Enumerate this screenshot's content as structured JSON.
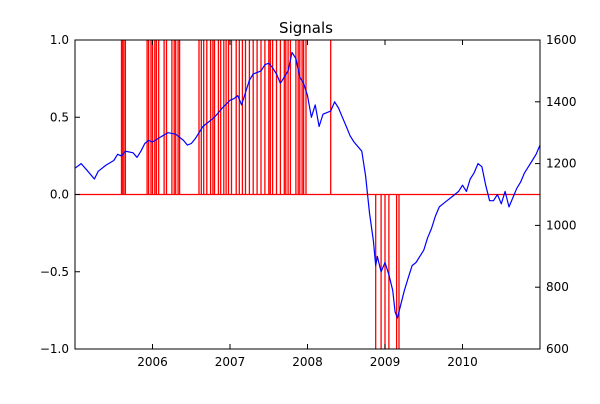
{
  "chart_data": {
    "type": "line",
    "title": "Signals",
    "xlabel": "",
    "ylabel": "",
    "ylabel_right": "",
    "grid": false,
    "legend": "none",
    "x_range": [
      2005.0,
      2011.0
    ],
    "x_ticks": [
      {
        "value": 2006,
        "label": "2006"
      },
      {
        "value": 2007,
        "label": "2007"
      },
      {
        "value": 2008,
        "label": "2008"
      },
      {
        "value": 2009,
        "label": "2009"
      },
      {
        "value": 2010,
        "label": "2010"
      }
    ],
    "y_left": {
      "range": [
        -1.0,
        1.0
      ],
      "ticks": [
        {
          "value": 1.0,
          "label": "1.0"
        },
        {
          "value": 0.5,
          "label": "0.5"
        },
        {
          "value": 0.0,
          "label": "0.0"
        },
        {
          "value": -0.5,
          "label": "−0.5"
        },
        {
          "value": -1.0,
          "label": "−1.0"
        }
      ]
    },
    "y_right": {
      "range": [
        600,
        1600
      ],
      "ticks": [
        {
          "value": 1600,
          "label": "1600"
        },
        {
          "value": 1400,
          "label": "1400"
        },
        {
          "value": 1200,
          "label": "1200"
        },
        {
          "value": 1000,
          "label": "1000"
        },
        {
          "value": 800,
          "label": "800"
        },
        {
          "value": 600,
          "label": "600"
        }
      ]
    },
    "series": [
      {
        "axis": "right",
        "color": "#0000ff",
        "x": [
          2005.0,
          2005.08,
          2005.15,
          2005.25,
          2005.3,
          2005.4,
          2005.5,
          2005.55,
          2005.6,
          2005.65,
          2005.75,
          2005.8,
          2005.85,
          2005.9,
          2005.95,
          2006.0,
          2006.1,
          2006.2,
          2006.3,
          2006.35,
          2006.4,
          2006.45,
          2006.5,
          2006.55,
          2006.6,
          2006.65,
          2006.7,
          2006.8,
          2006.9,
          2007.0,
          2007.05,
          2007.1,
          2007.15,
          2007.2,
          2007.25,
          2007.3,
          2007.4,
          2007.45,
          2007.5,
          2007.55,
          2007.6,
          2007.65,
          2007.7,
          2007.75,
          2007.8,
          2007.85,
          2007.9,
          2007.95,
          2008.0,
          2008.05,
          2008.1,
          2008.15,
          2008.2,
          2008.3,
          2008.35,
          2008.4,
          2008.45,
          2008.5,
          2008.55,
          2008.6,
          2008.7,
          2008.75,
          2008.8,
          2008.85,
          2008.88,
          2008.9,
          2008.95,
          2009.0,
          2009.05,
          2009.1,
          2009.13,
          2009.16,
          2009.2,
          2009.25,
          2009.3,
          2009.35,
          2009.4,
          2009.45,
          2009.5,
          2009.55,
          2009.6,
          2009.65,
          2009.7,
          2009.75,
          2009.8,
          2009.85,
          2009.9,
          2009.95,
          2010.0,
          2010.05,
          2010.1,
          2010.15,
          2010.2,
          2010.25,
          2010.3,
          2010.35,
          2010.4,
          2010.45,
          2010.5,
          2010.55,
          2010.6,
          2010.65,
          2010.7,
          2010.75,
          2010.8,
          2010.85,
          2010.9,
          2010.95,
          2011.0
        ],
        "y": [
          1185,
          1200,
          1180,
          1150,
          1175,
          1195,
          1210,
          1230,
          1225,
          1240,
          1235,
          1220,
          1240,
          1265,
          1275,
          1270,
          1285,
          1300,
          1295,
          1285,
          1275,
          1260,
          1265,
          1280,
          1300,
          1320,
          1330,
          1350,
          1380,
          1405,
          1410,
          1420,
          1390,
          1430,
          1470,
          1490,
          1500,
          1520,
          1525,
          1510,
          1490,
          1460,
          1480,
          1500,
          1560,
          1540,
          1480,
          1460,
          1420,
          1350,
          1390,
          1320,
          1360,
          1370,
          1400,
          1380,
          1350,
          1320,
          1290,
          1270,
          1240,
          1160,
          1040,
          950,
          870,
          900,
          850,
          880,
          840,
          790,
          720,
          700,
          740,
          790,
          830,
          870,
          880,
          900,
          920,
          960,
          990,
          1030,
          1060,
          1070,
          1080,
          1090,
          1100,
          1110,
          1130,
          1110,
          1150,
          1170,
          1200,
          1190,
          1130,
          1080,
          1080,
          1100,
          1070,
          1110,
          1060,
          1090,
          1120,
          1140,
          1170,
          1190,
          1210,
          1230,
          1260
        ]
      }
    ],
    "signals": {
      "axis": "left",
      "color": "#ff0000",
      "baseline": 0.0,
      "up_spikes_value": 1.0,
      "down_spikes_value": -1.0,
      "up_spike_x": [
        2005.6,
        2005.61,
        2005.63,
        2005.65,
        2005.93,
        2005.95,
        2005.98,
        2006.0,
        2006.03,
        2006.05,
        2006.08,
        2006.15,
        2006.18,
        2006.25,
        2006.28,
        2006.3,
        2006.33,
        2006.35,
        2006.6,
        2006.63,
        2006.66,
        2006.7,
        2006.75,
        2006.78,
        2006.8,
        2006.85,
        2006.88,
        2006.92,
        2006.95,
        2006.98,
        2007.02,
        2007.08,
        2007.12,
        2007.16,
        2007.2,
        2007.25,
        2007.3,
        2007.35,
        2007.4,
        2007.45,
        2007.5,
        2007.52,
        2007.55,
        2007.6,
        2007.65,
        2007.7,
        2007.72,
        2007.75,
        2007.78,
        2007.85,
        2007.88,
        2007.9,
        2007.93,
        2007.95,
        2007.98,
        2008.3
      ],
      "down_spike_x": [
        2008.88,
        2008.95,
        2009.0,
        2009.05,
        2009.15,
        2009.18
      ]
    }
  }
}
